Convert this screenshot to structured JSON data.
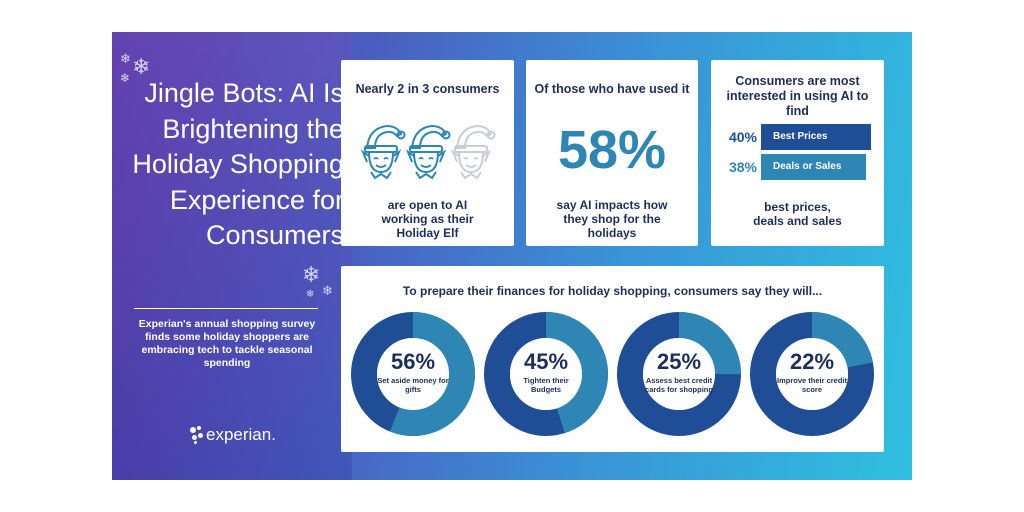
{
  "title": "Jingle Bots: AI Is Brightening the Holiday Shopping Experience for Consumers",
  "intro": "Experian's annual shopping survey finds some holiday shoppers are embracing tech to tackle seasonal spending",
  "brand": "experian.",
  "colors": {
    "bg_start": "#5a3aa8",
    "bg_end": "#2fc0e0",
    "navy": "#1d2e5a",
    "dark_blue": "#1f4e96",
    "teal": "#2e86b5",
    "light_gray": "#c9cdd6"
  },
  "card_elf": {
    "heading": "Nearly 2 in 3 consumers",
    "text": "are open to AI working as their Holiday Elf",
    "icon": "elf-icon",
    "filled": 2,
    "total": 3
  },
  "card_used": {
    "heading": "Of those who have used it",
    "value": "58%",
    "text": "say AI impacts how they shop for the holidays"
  },
  "card_interest": {
    "heading": "Consumers are most interested in using AI to find",
    "footer": "best prices, deals and sales"
  },
  "chart_data": [
    {
      "type": "bar",
      "orientation": "horizontal",
      "categories": [
        "Best Prices",
        "Deals or Sales"
      ],
      "values": [
        40,
        38
      ],
      "value_labels": [
        "40%",
        "38%"
      ],
      "unit": "%"
    },
    {
      "type": "pie",
      "style": "donut",
      "title": "To prepare their finances for holiday shopping, consumers say they will...",
      "categories": [
        "Set aside money for gifts",
        "Tighten their Budgets",
        "Assess best credit cards for shopping",
        "Improve their credit score"
      ],
      "values": [
        56,
        45,
        25,
        22
      ],
      "value_labels": [
        "56%",
        "45%",
        "25%",
        "22%"
      ],
      "unit": "%"
    }
  ]
}
